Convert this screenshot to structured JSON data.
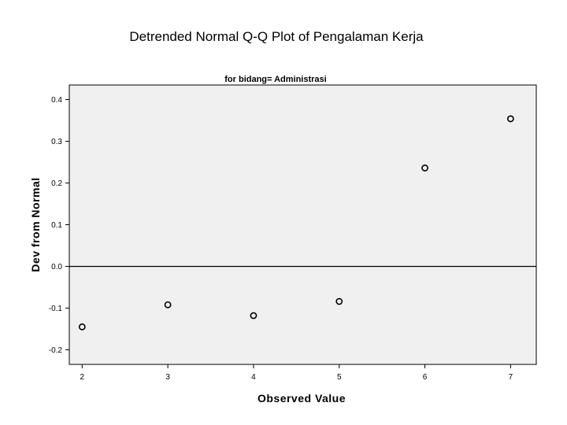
{
  "chart_data": {
    "type": "scatter",
    "title": "Detrended Normal Q-Q Plot of Pengalaman Kerja",
    "subtitle": "for bidang= Administrasi",
    "xlabel": "Observed Value",
    "ylabel": "Dev from Normal",
    "xlim": [
      1.85,
      7.3
    ],
    "ylim": [
      -0.235,
      0.435
    ],
    "x_ticks": [
      2,
      3,
      4,
      5,
      6,
      7
    ],
    "y_ticks": [
      -0.2,
      -0.1,
      0.0,
      0.1,
      0.2,
      0.3,
      0.4
    ],
    "y_tick_labels": [
      "-0.2",
      "-0.1",
      "0.0",
      "0.1",
      "0.2",
      "0.3",
      "0.4"
    ],
    "reference_line_y": 0.0,
    "grid": false,
    "points": [
      {
        "x": 2,
        "y": -0.145
      },
      {
        "x": 3,
        "y": -0.092
      },
      {
        "x": 4,
        "y": -0.118
      },
      {
        "x": 5,
        "y": -0.084
      },
      {
        "x": 6,
        "y": 0.236
      },
      {
        "x": 7,
        "y": 0.354
      }
    ],
    "colors": {
      "plot_background": "#f0f0f0",
      "marker": "#000000",
      "axis": "#000000"
    }
  }
}
